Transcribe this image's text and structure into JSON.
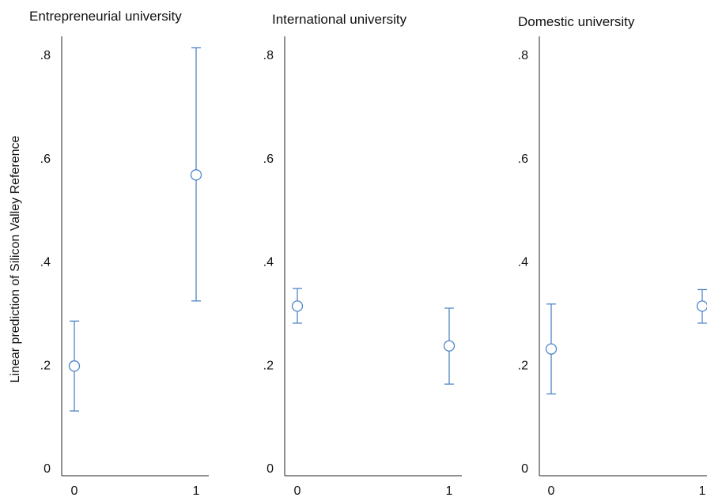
{
  "chart_data": {
    "type": "scatter",
    "ylabel": "Linear prediction of Silicon Valley Reference",
    "ylim": [
      0,
      0.8
    ],
    "y_ticks": [
      0,
      0.2,
      0.4,
      0.6,
      0.8
    ],
    "y_tick_labels": [
      "0",
      ".2",
      ".4",
      ".6",
      ".8"
    ],
    "x_tick_labels": [
      "0",
      "1"
    ],
    "marker": "hollow-circle",
    "error_bars": true,
    "grid": false,
    "colors": {
      "series": "#4f86c6",
      "axis": "#222222"
    },
    "panels": [
      {
        "title": "Entrepreneurial university",
        "points": [
          {
            "x": 0,
            "y": 0.197,
            "ci_low": 0.11,
            "ci_high": 0.284
          },
          {
            "x": 1,
            "y": 0.567,
            "ci_low": 0.323,
            "ci_high": 0.813
          }
        ]
      },
      {
        "title": "International university",
        "points": [
          {
            "x": 0,
            "y": 0.313,
            "ci_low": 0.28,
            "ci_high": 0.347
          },
          {
            "x": 1,
            "y": 0.236,
            "ci_low": 0.162,
            "ci_high": 0.309
          }
        ]
      },
      {
        "title": "Domestic university",
        "points": [
          {
            "x": 0,
            "y": 0.23,
            "ci_low": 0.143,
            "ci_high": 0.317
          },
          {
            "x": 1,
            "y": 0.313,
            "ci_low": 0.28,
            "ci_high": 0.345
          }
        ]
      }
    ]
  }
}
